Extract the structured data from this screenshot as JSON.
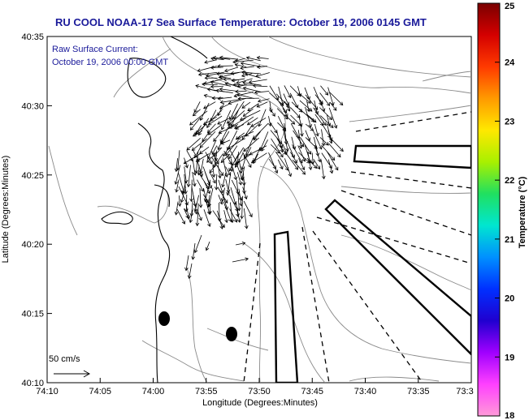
{
  "title": "RU COOL  NOAA-17  Sea Surface Temperature:  October 19, 2006 0145 GMT",
  "overlay": {
    "line1": "Raw Surface Current:",
    "line2": "October 19, 2006 00:00 GMT"
  },
  "x_axis": {
    "label": "Longitude (Degrees:Minutes)",
    "ticks": [
      "74:10",
      "74:05",
      "74:00",
      "73:55",
      "73:50",
      "73:45",
      "73:40",
      "73:35",
      "73:3"
    ]
  },
  "y_axis": {
    "label": "Latitude (Degrees:Minutes)",
    "ticks": [
      "40:35",
      "40:30",
      "40:25",
      "40:20",
      "40:15",
      "40:10"
    ]
  },
  "scale_label": "50 cm/s",
  "colorbar": {
    "label": "Temperature (°C)",
    "ticks": [
      "25",
      "24",
      "23",
      "22",
      "21",
      "20",
      "19",
      "18"
    ],
    "colors": [
      "#7a0000",
      "#d40000",
      "#ff3a00",
      "#ff9a00",
      "#ffe800",
      "#a8f000",
      "#20e060",
      "#00e6d0",
      "#0090ff",
      "#0030ff",
      "#2000d0",
      "#a000ff",
      "#ff40ff",
      "#ff9ad8"
    ]
  }
}
